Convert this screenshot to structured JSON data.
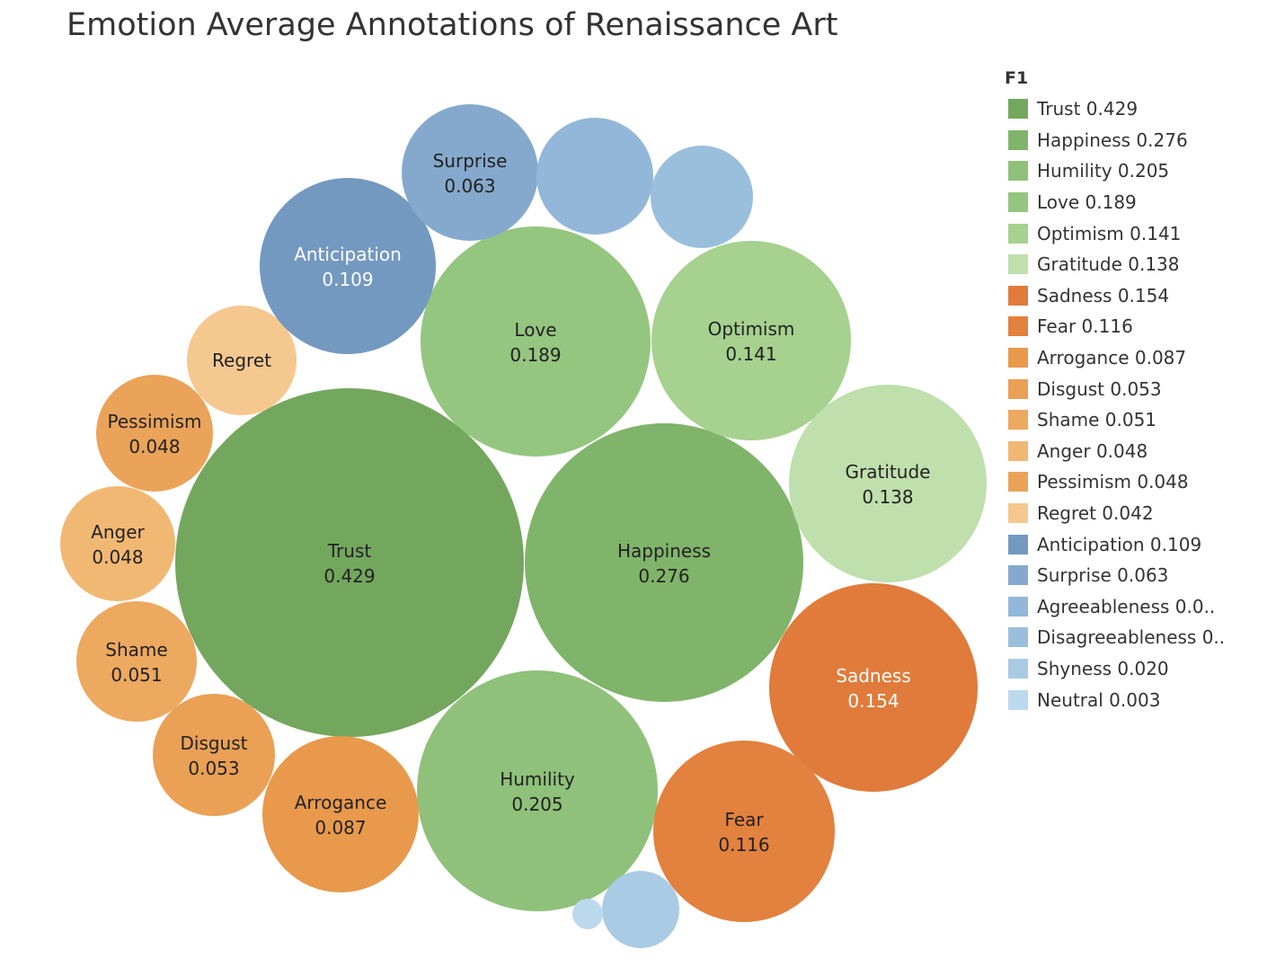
{
  "chart_data": {
    "type": "packed-bubble",
    "title": "Emotion Average Annotations of Renaissance Art",
    "legend_title": "F1",
    "legend_placement": "right",
    "series": [
      {
        "name": "Trust",
        "value": 0.429,
        "display": "0.429",
        "color": "#74a75e",
        "text_color": "#222222",
        "show_label": true,
        "legend": "Trust 0.429"
      },
      {
        "name": "Happiness",
        "value": 0.276,
        "display": "0.276",
        "color": "#80b46a",
        "text_color": "#222222",
        "show_label": true,
        "legend": "Happiness 0.276"
      },
      {
        "name": "Humility",
        "value": 0.205,
        "display": "0.205",
        "color": "#8fc17a",
        "text_color": "#222222",
        "show_label": true,
        "legend": "Humility 0.205"
      },
      {
        "name": "Love",
        "value": 0.189,
        "display": "0.189",
        "color": "#95c680",
        "text_color": "#222222",
        "show_label": true,
        "legend": "Love 0.189"
      },
      {
        "name": "Optimism",
        "value": 0.141,
        "display": "0.141",
        "color": "#a6d18f",
        "text_color": "#222222",
        "show_label": true,
        "legend": "Optimism 0.141"
      },
      {
        "name": "Gratitude",
        "value": 0.138,
        "display": "0.138",
        "color": "#bfdfad",
        "text_color": "#222222",
        "show_label": true,
        "legend": "Gratitude 0.138"
      },
      {
        "name": "Sadness",
        "value": 0.154,
        "display": "0.154",
        "color": "#e07b3b",
        "text_color": "#ffffff",
        "show_label": true,
        "legend": "Sadness 0.154"
      },
      {
        "name": "Fear",
        "value": 0.116,
        "display": "0.116",
        "color": "#e3813f",
        "text_color": "#222222",
        "show_label": true,
        "legend": "Fear 0.116"
      },
      {
        "name": "Arrogance",
        "value": 0.087,
        "display": "0.087",
        "color": "#e8994b",
        "text_color": "#222222",
        "show_label": true,
        "legend": "Arrogance 0.087"
      },
      {
        "name": "Disgust",
        "value": 0.053,
        "display": "0.053",
        "color": "#eaa055",
        "text_color": "#222222",
        "show_label": true,
        "legend": "Disgust 0.053"
      },
      {
        "name": "Shame",
        "value": 0.051,
        "display": "0.051",
        "color": "#eda95f",
        "text_color": "#222222",
        "show_label": true,
        "legend": "Shame 0.051"
      },
      {
        "name": "Anger",
        "value": 0.048,
        "display": "0.048",
        "color": "#f1b874",
        "text_color": "#222222",
        "show_label": true,
        "legend": "Anger 0.048"
      },
      {
        "name": "Pessimism",
        "value": 0.048,
        "display": "0.048",
        "color": "#eaa359",
        "text_color": "#222222",
        "show_label": true,
        "legend": "Pessimism 0.048"
      },
      {
        "name": "Regret",
        "value": 0.042,
        "display": "",
        "color": "#f5c890",
        "text_color": "#222222",
        "show_label": true,
        "legend": "Regret 0.042"
      },
      {
        "name": "Anticipation",
        "value": 0.109,
        "display": "0.109",
        "color": "#7399c0",
        "text_color": "#ffffff",
        "show_label": true,
        "legend": "Anticipation 0.109"
      },
      {
        "name": "Surprise",
        "value": 0.063,
        "display": "0.063",
        "color": "#85a9cd",
        "text_color": "#222222",
        "show_label": true,
        "legend": "Surprise 0.063"
      },
      {
        "name": "Agreeableness",
        "value": null,
        "display": "",
        "color": "#93b7d8",
        "text_color": "#222222",
        "show_label": false,
        "legend": "Agreeableness 0.0.."
      },
      {
        "name": "Disagreeableness",
        "value": null,
        "display": "",
        "color": "#9abfdd",
        "text_color": "#222222",
        "show_label": false,
        "legend": "Disagreeableness 0.."
      },
      {
        "name": "Shyness",
        "value": 0.02,
        "display": "",
        "color": "#a9cbe4",
        "text_color": "#222222",
        "show_label": false,
        "legend": "Shyness 0.020"
      },
      {
        "name": "Neutral",
        "value": 0.003,
        "display": "",
        "color": "#bdd9ee",
        "text_color": "#222222",
        "show_label": false,
        "legend": "Neutral 0.003"
      }
    ]
  }
}
